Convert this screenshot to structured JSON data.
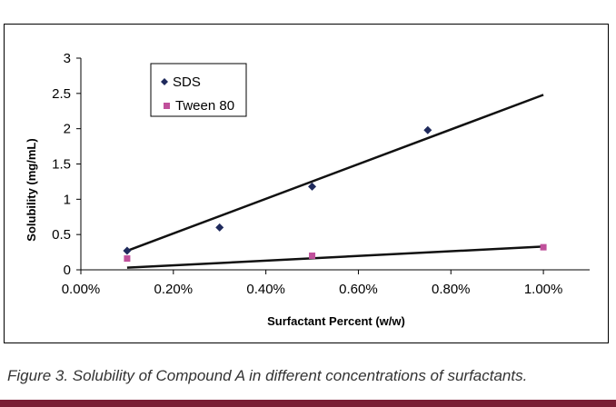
{
  "caption": "Figure 3. Solubility of Compound A in different concentrations of surfactants.",
  "colors": {
    "sds": "#1f2a5c",
    "tween80": "#c0509b",
    "trendline": "#111111",
    "axis": "#000000",
    "bottom_rule": "#7a1f35"
  },
  "chart_data": {
    "type": "scatter",
    "title": "",
    "xlabel": "Surfactant Percent (w/w)",
    "ylabel": "Solubility (mg/mL)",
    "xlim": [
      0,
      0.011
    ],
    "ylim": [
      0,
      3
    ],
    "x_ticks": [
      0,
      0.002,
      0.004,
      0.006,
      0.008,
      0.01
    ],
    "x_tick_labels": [
      "0.00%",
      "0.20%",
      "0.40%",
      "0.60%",
      "0.80%",
      "1.00%"
    ],
    "y_ticks": [
      0,
      0.5,
      1,
      1.5,
      2,
      2.5,
      3
    ],
    "y_tick_labels": [
      "0",
      "0.5",
      "1",
      "1.5",
      "2",
      "2.5",
      "3"
    ],
    "grid": false,
    "legend_position": "top-left",
    "series": [
      {
        "name": "SDS",
        "marker": "diamond",
        "x": [
          0.001,
          0.003,
          0.005,
          0.0075
        ],
        "y": [
          0.27,
          0.6,
          1.18,
          1.98
        ],
        "trendline": {
          "x": [
            0.001,
            0.01
          ],
          "y": [
            0.27,
            2.48
          ]
        }
      },
      {
        "name": "Tween 80",
        "marker": "square",
        "x": [
          0.001,
          0.005,
          0.01
        ],
        "y": [
          0.16,
          0.2,
          0.32
        ],
        "trendline": {
          "x": [
            0.001,
            0.01
          ],
          "y": [
            0.03,
            0.33
          ]
        }
      }
    ]
  }
}
